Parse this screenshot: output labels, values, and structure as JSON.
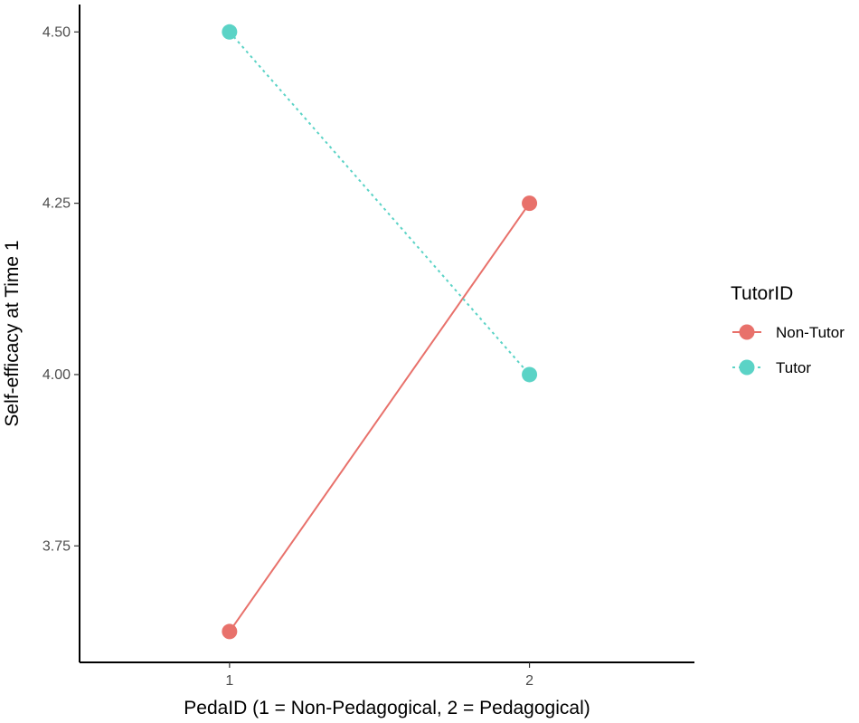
{
  "chart_data": {
    "type": "line",
    "xlabel": "PedaID (1 = Non-Pedagogical, 2 = Pedagogical)",
    "ylabel": "Self-efficacy at Time 1",
    "x_categories": [
      "1",
      "2"
    ],
    "xlim": [
      0.5,
      2.55
    ],
    "ylim": [
      3.58,
      4.54
    ],
    "y_ticks": [
      3.75,
      4.0,
      4.25,
      4.5
    ],
    "y_tick_labels": [
      "3.75",
      "4.00",
      "4.25",
      "4.50"
    ],
    "grid": false,
    "legend": {
      "title": "TutorID",
      "position": "right"
    },
    "series": [
      {
        "name": "Non-Tutor",
        "x": [
          1,
          2
        ],
        "y": [
          3.625,
          4.25
        ],
        "color": "#E8716B",
        "line_style": "solid"
      },
      {
        "name": "Tutor",
        "x": [
          1,
          2
        ],
        "y": [
          4.5,
          4.0
        ],
        "color": "#5BD3C6",
        "line_style": "dotted"
      }
    ]
  }
}
